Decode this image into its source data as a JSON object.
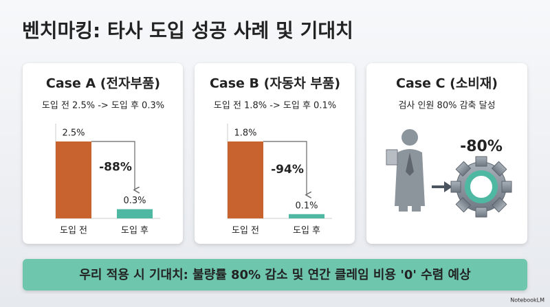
{
  "title": "벤치마킹: 타사 도입 성공 사례 및 기대치",
  "chart_data": [
    {
      "type": "bar",
      "title": "Case A (전자부품)",
      "subtitle": "도입 전 2.5% -> 도입 후 0.3%",
      "categories": [
        "도입 전",
        "도입 후"
      ],
      "values": [
        2.5,
        0.3
      ],
      "value_labels": [
        "2.5%",
        "0.3%"
      ],
      "colors": [
        "#c8622e",
        "#4fb8a3"
      ],
      "annotation": "-88%"
    },
    {
      "type": "bar",
      "title": "Case B (자동차 부품)",
      "subtitle": "도입 전 1.8% -> 도입 후 0.1%",
      "categories": [
        "도입 전",
        "도입 후"
      ],
      "values": [
        1.8,
        0.1
      ],
      "value_labels": [
        "1.8%",
        "0.1%"
      ],
      "colors": [
        "#c8622e",
        "#4fb8a3"
      ],
      "annotation": "-94%"
    }
  ],
  "case_c": {
    "title": "Case C (소비재)",
    "subtitle": "검사 인원 80% 감축 달성",
    "annotation": "-80%"
  },
  "banner": "우리 적용 시 기대치: 불량률 80% 감소 및 연간 클레임 비용 '0' 수렴 예상",
  "brand": "NotebookLM"
}
